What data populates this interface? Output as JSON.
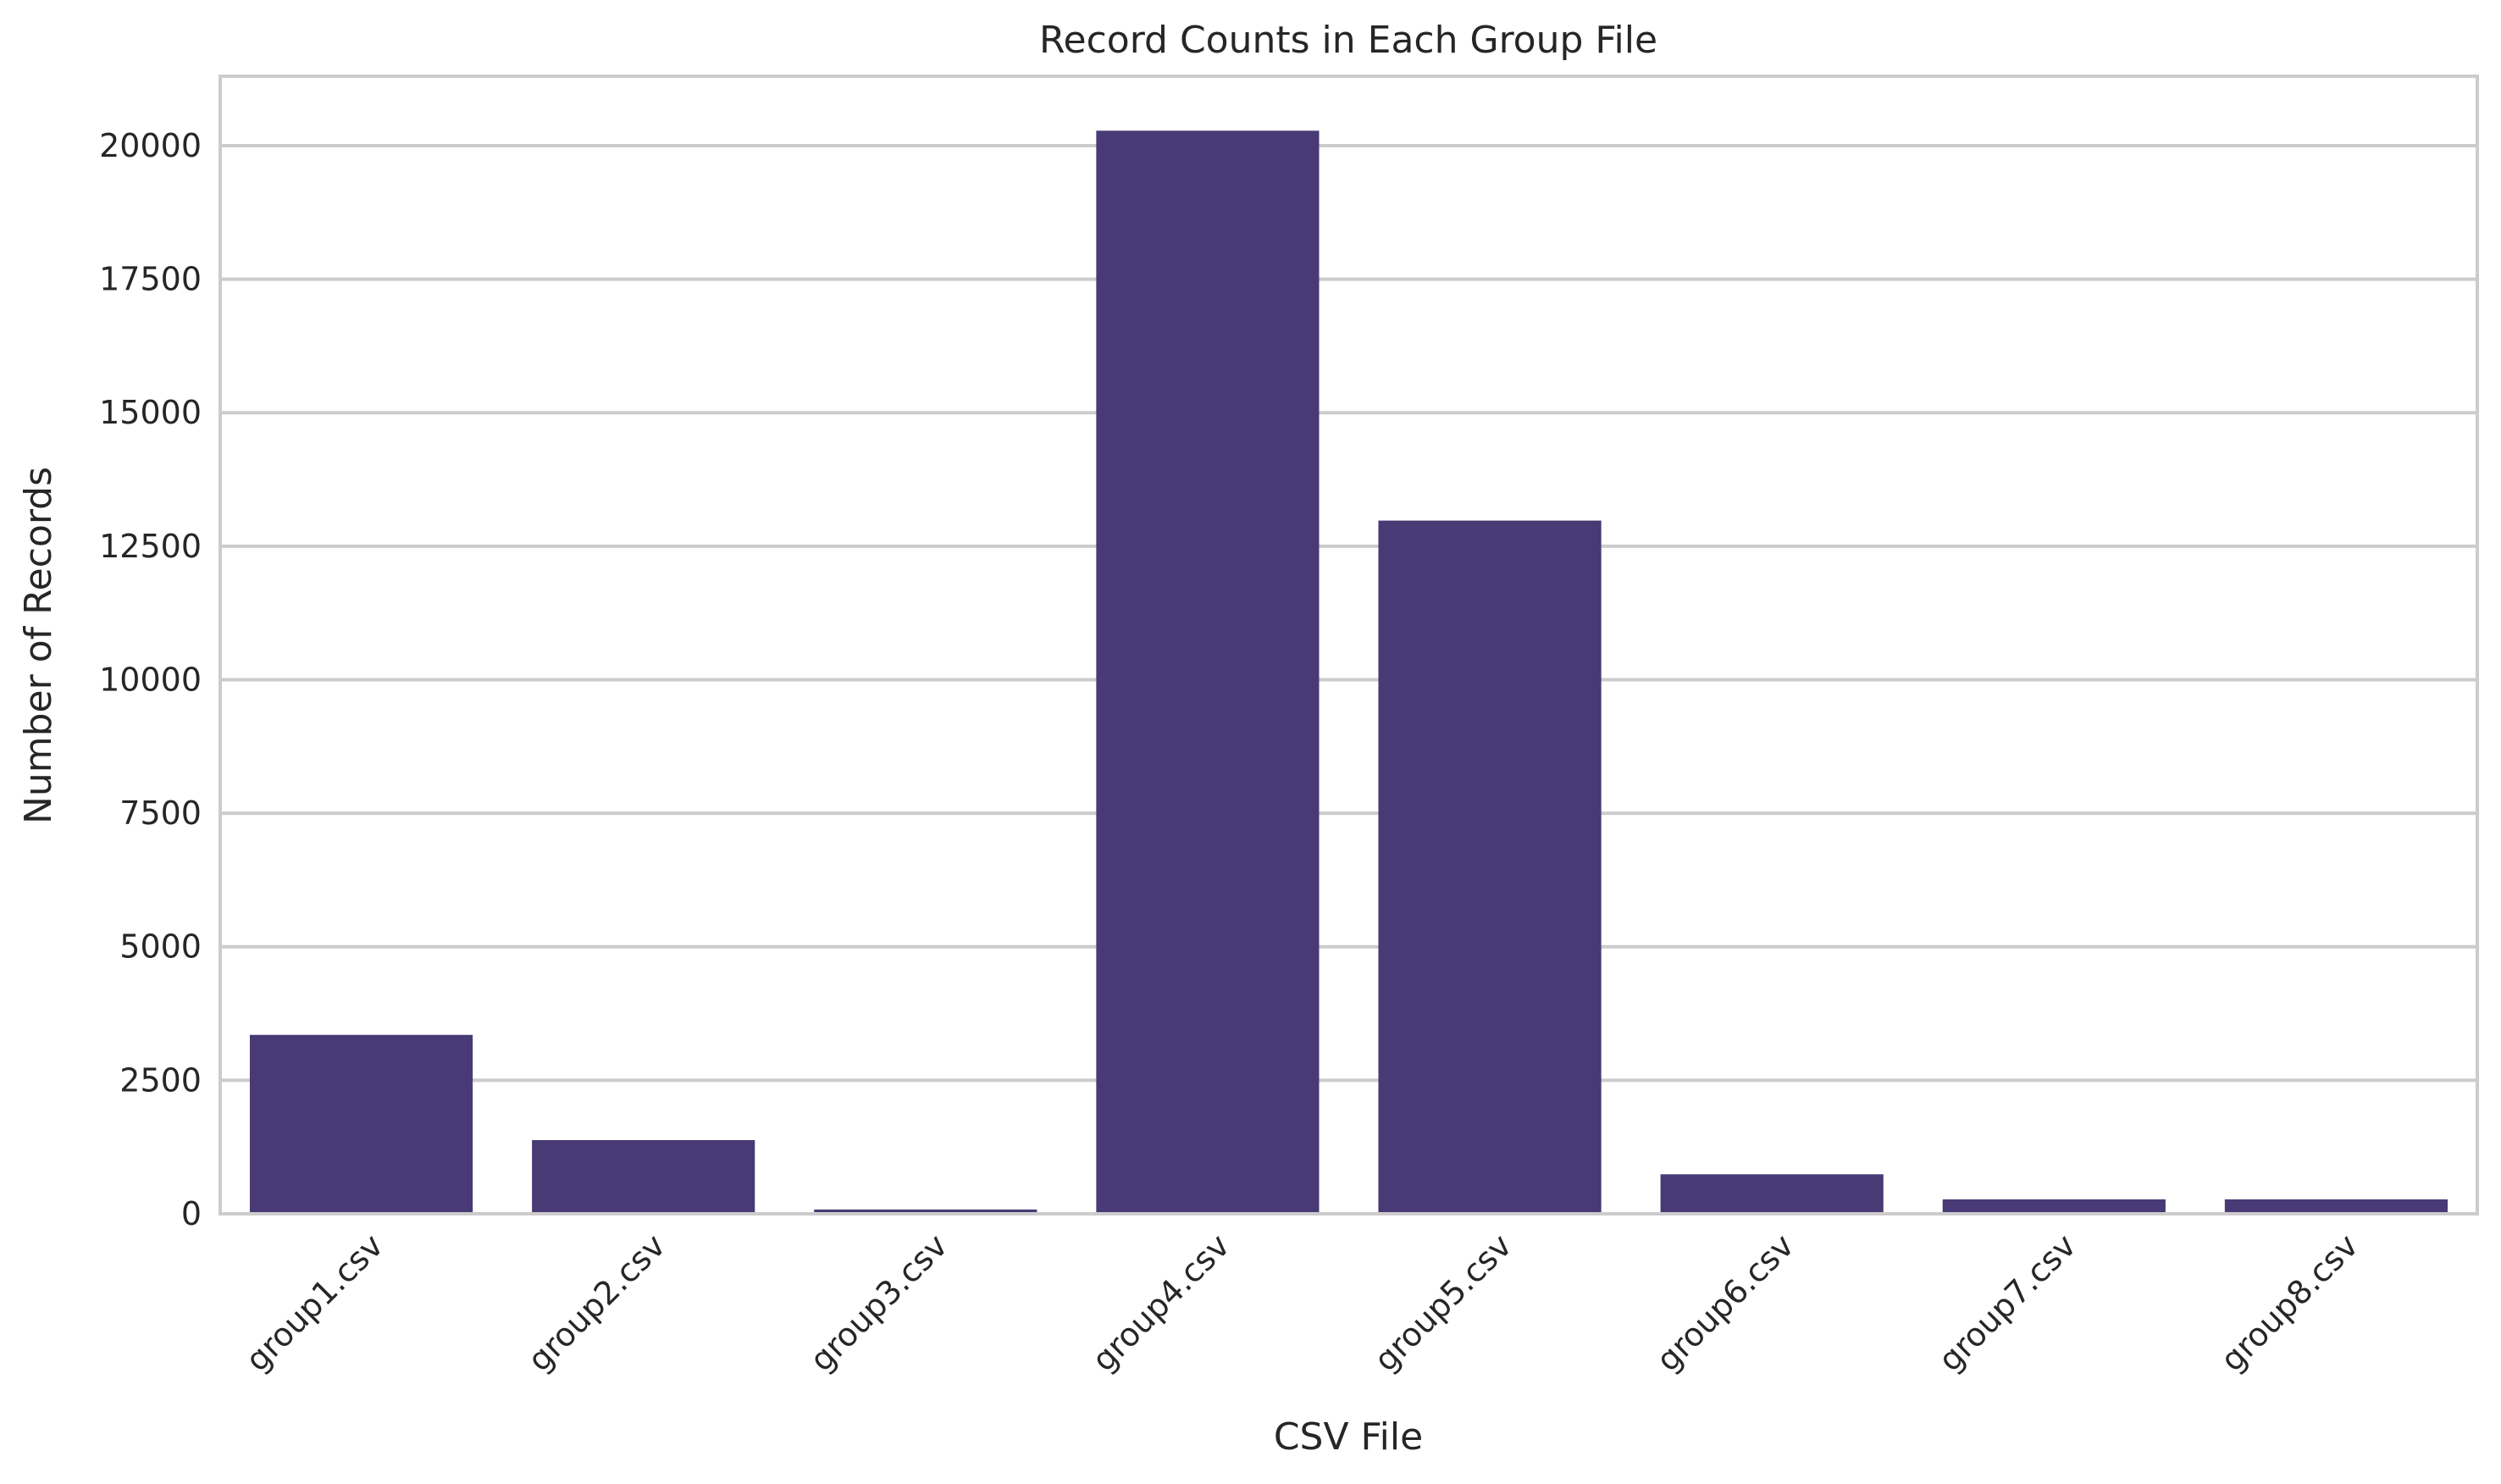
{
  "chart_data": {
    "type": "bar",
    "title": "Record Counts in Each Group File",
    "xlabel": "CSV File",
    "ylabel": "Number of Records",
    "categories": [
      "group1.csv",
      "group2.csv",
      "group3.csv",
      "group4.csv",
      "group5.csv",
      "group6.csv",
      "group7.csv",
      "group8.csv"
    ],
    "values": [
      3350,
      1380,
      80,
      20280,
      12980,
      740,
      270,
      270
    ],
    "ylim": [
      0,
      21300
    ],
    "yticks": [
      0,
      2500,
      5000,
      7500,
      10000,
      12500,
      15000,
      17500,
      20000
    ],
    "grid": "horizontal",
    "legend": "none",
    "bar_color": "#483a74",
    "grid_color": "#cccccc",
    "text_color": "#262626"
  }
}
